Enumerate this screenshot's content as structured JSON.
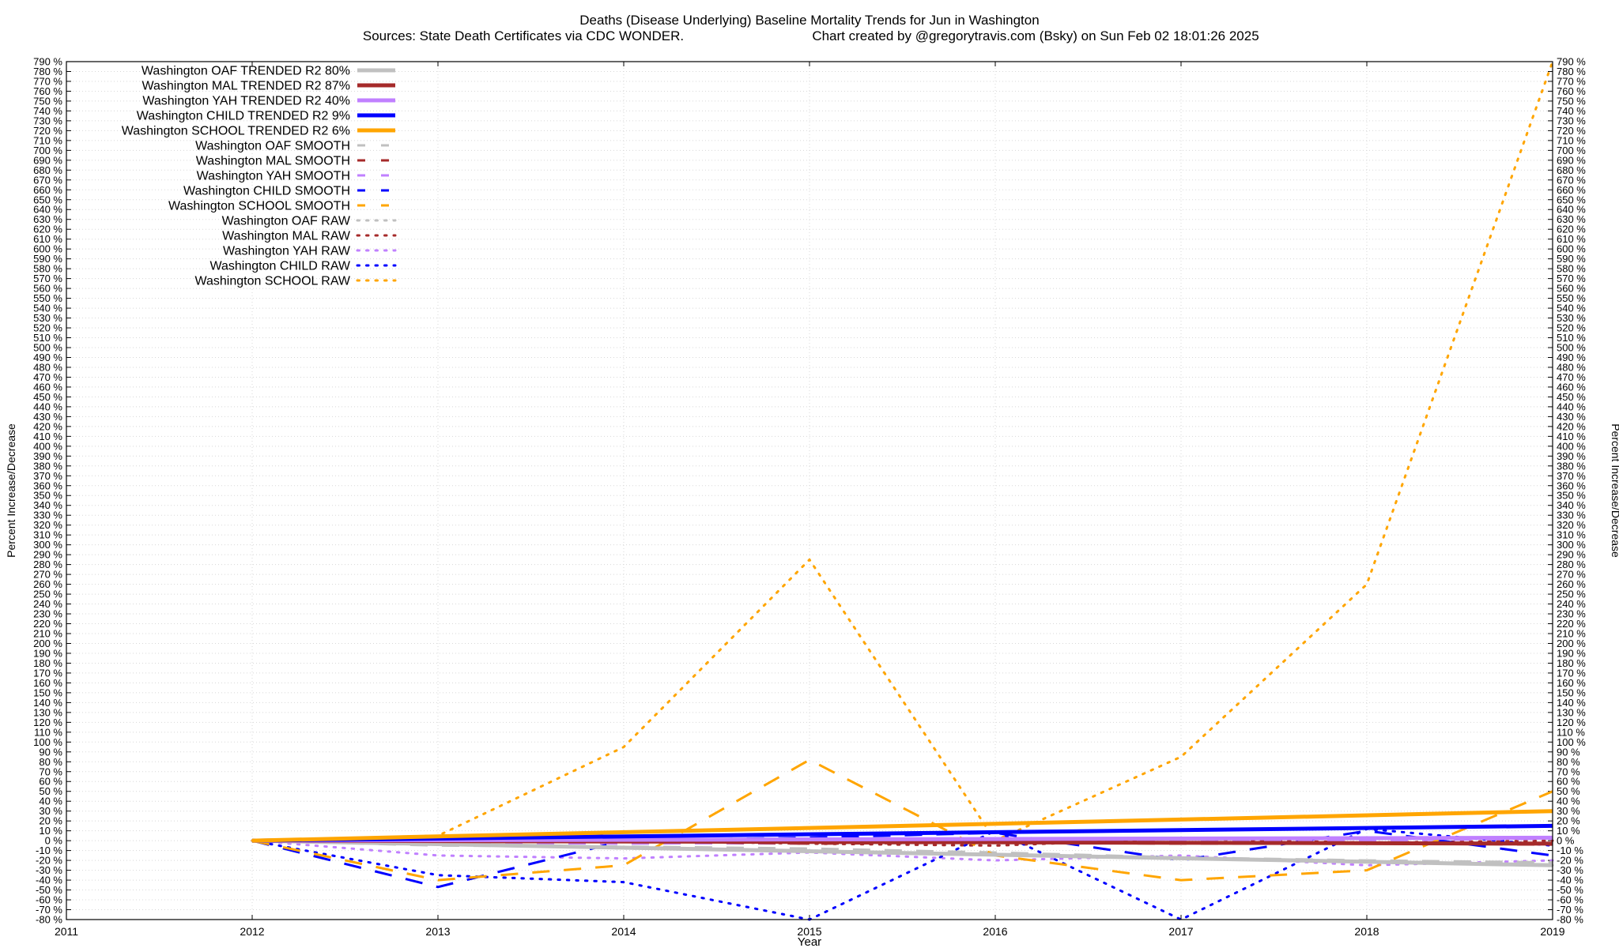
{
  "chart_data": {
    "type": "line",
    "title": "Deaths (Disease Underlying)  Baseline Mortality Trends for Jun in Washington",
    "subtitle_left": "Sources: State Death Certificates via CDC WONDER.",
    "subtitle_right": "Chart created by @gregorytravis.com (Bsky) on Sun Feb 02 18:01:26 2025",
    "xlabel": "Year",
    "ylabel_left": "Percent Increase/Decrease",
    "ylabel_right": "Percent Increase/Decrease",
    "xlim": [
      2011,
      2019
    ],
    "ylim": [
      -80,
      790
    ],
    "x_ticks": [
      2011,
      2012,
      2013,
      2014,
      2015,
      2016,
      2017,
      2018,
      2019
    ],
    "y_tick_step": 10,
    "y_tick_suffix": " %",
    "grid": true,
    "legend_position": "top-left",
    "series": [
      {
        "name": "Washington OAF TRENDED R2  80%",
        "style": "trend",
        "color": "#c0c0c0",
        "x": [
          2012,
          2019
        ],
        "y": [
          0,
          -25
        ]
      },
      {
        "name": "Washington MAL TRENDED R2  87%",
        "style": "trend",
        "color": "#a52a2a",
        "x": [
          2012,
          2019
        ],
        "y": [
          0,
          -3
        ]
      },
      {
        "name": "Washington YAH TRENDED R2  40%",
        "style": "trend",
        "color": "#c080ff",
        "x": [
          2012,
          2019
        ],
        "y": [
          0,
          3
        ]
      },
      {
        "name": "Washington CHILD TRENDED R2   9%",
        "style": "trend",
        "color": "#0000ff",
        "x": [
          2012,
          2019
        ],
        "y": [
          0,
          15
        ]
      },
      {
        "name": "Washington SCHOOL TRENDED R2   6%",
        "style": "trend",
        "color": "#ffa500",
        "x": [
          2012,
          2019
        ],
        "y": [
          0,
          30
        ]
      },
      {
        "name": "Washington OAF SMOOTH",
        "style": "smooth",
        "color": "#c0c0c0",
        "x": [
          2012,
          2013,
          2014,
          2015,
          2016,
          2017,
          2018,
          2019
        ],
        "y": [
          0,
          -5,
          -6,
          -8,
          -12,
          -17,
          -20,
          -22
        ]
      },
      {
        "name": "Washington MAL SMOOTH",
        "style": "smooth",
        "color": "#a52a2a",
        "x": [
          2012,
          2013,
          2014,
          2015,
          2016,
          2017,
          2018,
          2019
        ],
        "y": [
          0,
          0,
          -2,
          -3,
          -2,
          -3,
          -3,
          -4
        ]
      },
      {
        "name": "Washington YAH SMOOTH",
        "style": "smooth",
        "color": "#c080ff",
        "x": [
          2012,
          2013,
          2014,
          2015,
          2016,
          2017,
          2018,
          2019
        ],
        "y": [
          0,
          -2,
          -3,
          -2,
          0,
          -1,
          0,
          2
        ]
      },
      {
        "name": "Washington CHILD SMOOTH",
        "style": "smooth",
        "color": "#0000ff",
        "x": [
          2012,
          2013,
          2014,
          2015,
          2016,
          2017,
          2018,
          2019
        ],
        "y": [
          0,
          -47,
          0,
          3,
          8,
          -20,
          10,
          -15
        ]
      },
      {
        "name": "Washington SCHOOL SMOOTH",
        "style": "smooth",
        "color": "#ffa500",
        "x": [
          2012,
          2013,
          2014,
          2015,
          2016,
          2017,
          2018,
          2019
        ],
        "y": [
          0,
          -40,
          -25,
          82,
          -15,
          -40,
          -30,
          50
        ]
      },
      {
        "name": "Washington OAF RAW",
        "style": "raw",
        "color": "#c0c0c0",
        "x": [
          2012,
          2013,
          2014,
          2015,
          2016,
          2017,
          2018,
          2019
        ],
        "y": [
          0,
          -3,
          -8,
          -10,
          -14,
          -17,
          -22,
          -25
        ]
      },
      {
        "name": "Washington MAL RAW",
        "style": "raw",
        "color": "#a52a2a",
        "x": [
          2012,
          2013,
          2014,
          2015,
          2016,
          2017,
          2018,
          2019
        ],
        "y": [
          0,
          5,
          0,
          -3,
          -5,
          2,
          -2,
          0
        ]
      },
      {
        "name": "Washington YAH RAW",
        "style": "raw",
        "color": "#c080ff",
        "x": [
          2012,
          2013,
          2014,
          2015,
          2016,
          2017,
          2018,
          2019
        ],
        "y": [
          0,
          -15,
          -18,
          -12,
          -20,
          -15,
          -25,
          -20
        ]
      },
      {
        "name": "Washington CHILD RAW",
        "style": "raw",
        "color": "#0000ff",
        "x": [
          2012,
          2013,
          2014,
          2015,
          2016,
          2017,
          2018,
          2019
        ],
        "y": [
          0,
          -35,
          -42,
          -80,
          10,
          -80,
          12,
          -5
        ]
      },
      {
        "name": "Washington SCHOOL RAW",
        "style": "raw",
        "color": "#ffa500",
        "x": [
          2012,
          2013,
          2014,
          2015,
          2016,
          2017,
          2018,
          2019
        ],
        "y": [
          0,
          5,
          95,
          285,
          0,
          85,
          260,
          790
        ]
      }
    ]
  }
}
